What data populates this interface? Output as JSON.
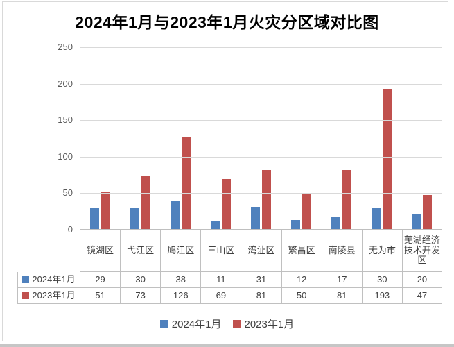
{
  "chart_data": {
    "type": "bar",
    "title": "2024年1月与2023年1月火灾分区域对比图",
    "categories": [
      "镜湖区",
      "弋江区",
      "鸠江区",
      "三山区",
      "湾沚区",
      "繁昌区",
      "南陵县",
      "无为市",
      "芜湖经济技术开发区"
    ],
    "series": [
      {
        "name": "2024年1月",
        "color": "#4F81BD",
        "values": [
          29,
          30,
          38,
          11,
          31,
          12,
          17,
          30,
          20
        ]
      },
      {
        "name": "2023年1月",
        "color": "#C0504D",
        "values": [
          51,
          73,
          126,
          69,
          81,
          50,
          81,
          193,
          47
        ]
      }
    ],
    "ylim": [
      0,
      250
    ],
    "yticks": [
      0,
      50,
      100,
      150,
      200,
      250
    ],
    "grid": true,
    "legend_position": "bottom",
    "data_table": true
  },
  "colors": {
    "gridline": "#d9d9d9",
    "axis_line": "#bfbfbf",
    "table_border": "#c0c0c0",
    "axis_text": "#595959",
    "table_text": "#404040",
    "title_text": "#000000",
    "frame_border": "#d9d9d9",
    "bottom_band": "#c6c6c6"
  }
}
